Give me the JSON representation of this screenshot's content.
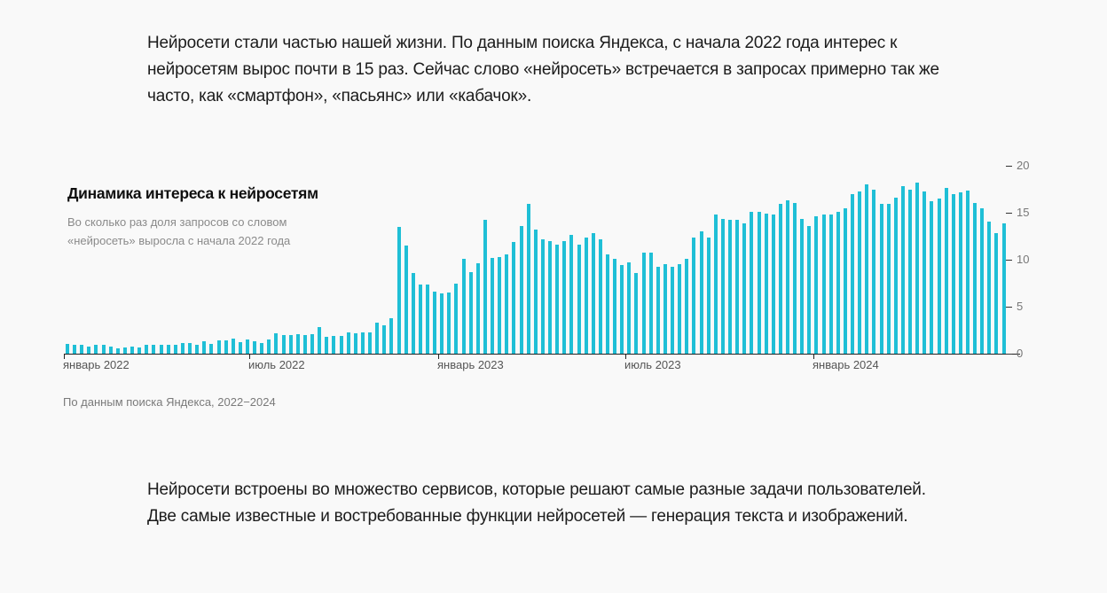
{
  "intro_text": "Нейросети стали частью нашей жизни. По данным поиска Яндекса, с начала 2022 года интерес к нейросетям вырос почти в 15 раз. Сейчас слово «нейросеть» встречается в запросах примерно так же часто, как «смартфон», «пасьянс» или «кабачок».",
  "outro_text": "Нейросети встроены во множество сервисов, которые решают самые разные задачи пользователей. Две самые известные и востребованные функции нейросетей — генерация текста и изображений.",
  "source_note": "По данным поиска Яндекса, 2022−2024",
  "colors": {
    "bar": "#1fbfd6",
    "background": "#f9f9f9",
    "axis": "#222222"
  },
  "chart_data": {
    "type": "bar",
    "title": "Динамика интереса к нейросетям",
    "subtitle": "Во сколько раз доля запросов со словом «нейросеть» выросла с начала 2022 года",
    "xlabel": "",
    "ylabel": "",
    "ylim": [
      0,
      20
    ],
    "yticks": [
      0,
      5,
      10,
      15,
      20
    ],
    "x_tick_labels": [
      "январь 2022",
      "июль 2022",
      "январь 2023",
      "июль 2023",
      "январь 2024"
    ],
    "x_granularity": "weekly",
    "grid": false,
    "legend": null,
    "values": [
      1.0,
      0.9,
      0.9,
      0.8,
      0.9,
      0.9,
      0.8,
      0.6,
      0.7,
      0.8,
      0.7,
      0.9,
      0.9,
      0.9,
      0.9,
      0.9,
      1.1,
      1.1,
      0.9,
      1.3,
      1.0,
      1.4,
      1.4,
      1.6,
      1.2,
      1.5,
      1.3,
      1.1,
      1.5,
      2.2,
      2.0,
      2.0,
      2.1,
      2.0,
      2.1,
      2.8,
      1.8,
      1.9,
      1.9,
      2.3,
      2.2,
      2.3,
      2.3,
      3.3,
      3.0,
      3.8,
      13.5,
      11.5,
      8.6,
      7.4,
      7.4,
      6.6,
      6.4,
      6.5,
      7.5,
      10.1,
      8.7,
      9.6,
      14.2,
      10.2,
      10.3,
      10.6,
      11.9,
      13.6,
      15.9,
      13.2,
      12.2,
      12.0,
      11.6,
      12.0,
      12.6,
      11.6,
      12.4,
      12.8,
      12.2,
      10.6,
      10.1,
      9.4,
      9.7,
      8.6,
      10.8,
      10.8,
      9.2,
      9.5,
      9.2,
      9.5,
      10.1,
      12.4,
      13.0,
      12.4,
      14.8,
      14.3,
      14.2,
      14.2,
      13.9,
      15.1,
      15.1,
      14.9,
      14.8,
      15.9,
      16.3,
      16.0,
      14.3,
      13.6,
      14.6,
      14.8,
      14.8,
      15.1,
      15.5,
      17.0,
      17.3,
      18.0,
      17.5,
      15.9,
      15.9,
      16.6,
      17.8,
      17.5,
      18.2,
      17.3,
      16.2,
      16.5,
      17.6,
      17.0,
      17.2,
      17.4,
      16.0,
      15.5,
      14.1,
      12.8,
      13.9
    ]
  }
}
